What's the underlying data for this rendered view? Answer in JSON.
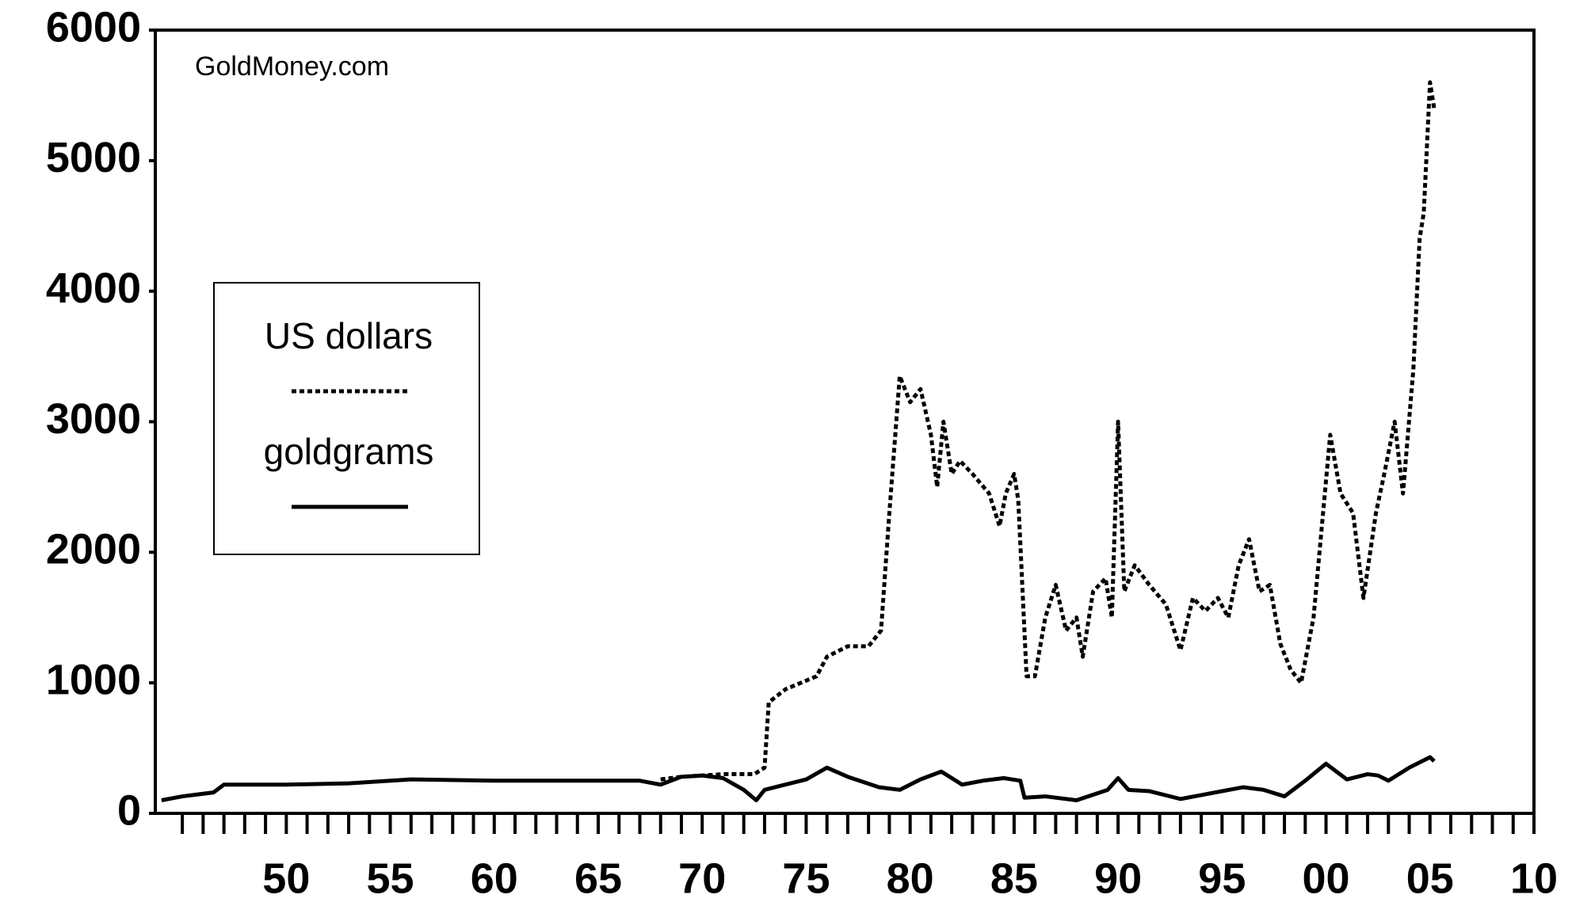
{
  "chart_data": {
    "type": "line",
    "annotation": "GoldMoney.com",
    "xlim": [
      1943.7,
      2010
    ],
    "xticks": [
      {
        "value": 1950,
        "label": "50"
      },
      {
        "value": 1955,
        "label": "55"
      },
      {
        "value": 1960,
        "label": "60"
      },
      {
        "value": 1965,
        "label": "65"
      },
      {
        "value": 1970,
        "label": "70"
      },
      {
        "value": 1975,
        "label": "75"
      },
      {
        "value": 1980,
        "label": "80"
      },
      {
        "value": 1985,
        "label": "85"
      },
      {
        "value": 1990,
        "label": "90"
      },
      {
        "value": 1995,
        "label": "95"
      },
      {
        "value": 2000,
        "label": "00"
      },
      {
        "value": 2005,
        "label": "05"
      },
      {
        "value": 2010,
        "label": "10"
      }
    ],
    "xminorticks": [
      1945,
      1946,
      1947,
      1948,
      1949,
      1951,
      1952,
      1953,
      1954,
      1956,
      1957,
      1958,
      1959,
      1961,
      1962,
      1963,
      1964,
      1966,
      1967,
      1968,
      1969,
      1971,
      1972,
      1973,
      1974,
      1976,
      1977,
      1978,
      1979,
      1981,
      1982,
      1983,
      1984,
      1986,
      1987,
      1988,
      1989,
      1991,
      1992,
      1993,
      1994,
      1996,
      1997,
      1998,
      1999,
      2001,
      2002,
      2003,
      2004,
      2006,
      2007,
      2008,
      2009
    ],
    "ylim": [
      0,
      6000
    ],
    "yticks": [
      0,
      1000,
      2000,
      3000,
      4000,
      5000,
      6000
    ],
    "legend": "left",
    "series": [
      {
        "name": "US dollars",
        "color": "#000000",
        "style": "dotted",
        "x": [
          1968,
          1969,
          1970,
          1971,
          1972.5,
          1973,
          1973.2,
          1974,
          1975.5,
          1976,
          1977,
          1978,
          1978.6,
          1979,
          1979.5,
          1980,
          1980.5,
          1981,
          1981.3,
          1981.6,
          1982,
          1982.4,
          1983,
          1983.8,
          1984.3,
          1984.6,
          1985,
          1985.2,
          1985.6,
          1986,
          1986.5,
          1987,
          1987.5,
          1988,
          1988.3,
          1988.8,
          1989.4,
          1989.7,
          1990,
          1990.3,
          1990.8,
          1991.5,
          1992.3,
          1993,
          1993.6,
          1994.2,
          1994.8,
          1995.3,
          1995.8,
          1996.3,
          1996.8,
          1997.3,
          1997.8,
          1998.3,
          1998.8,
          1999.4,
          2000.2,
          2000.7,
          2001.3,
          2001.8,
          2002.4,
          2002.8,
          2003.3,
          2003.7,
          2004.2,
          2004.5,
          2004.7,
          2005.0,
          2005.2
        ],
        "values": [
          260,
          280,
          290,
          300,
          300,
          350,
          850,
          950,
          1050,
          1200,
          1280,
          1280,
          1400,
          2300,
          3350,
          3150,
          3250,
          2900,
          2500,
          3000,
          2600,
          2700,
          2600,
          2450,
          2200,
          2450,
          2600,
          2400,
          1050,
          1050,
          1500,
          1750,
          1400,
          1500,
          1200,
          1700,
          1800,
          1500,
          3000,
          1700,
          1900,
          1750,
          1600,
          1250,
          1650,
          1550,
          1650,
          1500,
          1900,
          2100,
          1700,
          1750,
          1300,
          1100,
          1000,
          1500,
          2900,
          2450,
          2300,
          1650,
          2300,
          2600,
          3000,
          2450,
          3400,
          4400,
          4600,
          5600,
          5400
        ]
      },
      {
        "name": "goldgrams",
        "color": "#000000",
        "style": "solid",
        "x": [
          1944,
          1945,
          1946.5,
          1947,
          1950,
          1953,
          1956,
          1960,
          1967,
          1968,
          1969,
          1970,
          1971,
          1972,
          1972.6,
          1973,
          1974,
          1975,
          1976,
          1977,
          1978.5,
          1979.5,
          1980.5,
          1981.5,
          1982.5,
          1983.5,
          1984.5,
          1985.3,
          1985.5,
          1986.5,
          1988,
          1989.5,
          1990,
          1990.5,
          1991.5,
          1993,
          1994,
          1996,
          1997,
          1998,
          1999,
          2000,
          2001,
          2002,
          2002.5,
          2003,
          2004,
          2005,
          2005.2
        ],
        "values": [
          100,
          130,
          160,
          220,
          220,
          230,
          260,
          250,
          250,
          220,
          280,
          290,
          270,
          180,
          100,
          180,
          220,
          260,
          350,
          280,
          200,
          180,
          260,
          320,
          220,
          250,
          270,
          250,
          120,
          130,
          100,
          180,
          270,
          180,
          170,
          110,
          140,
          200,
          180,
          130,
          250,
          380,
          260,
          300,
          290,
          250,
          350,
          430,
          400
        ]
      }
    ]
  }
}
